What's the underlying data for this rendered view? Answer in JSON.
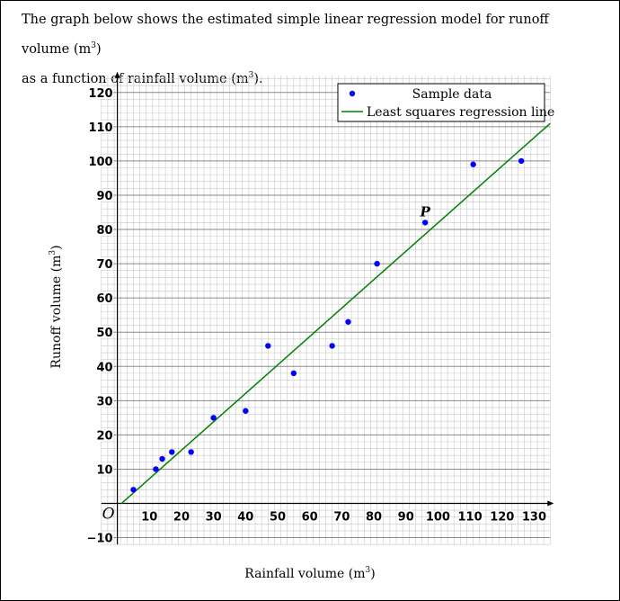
{
  "intro": {
    "line1_text": "The graph below shows the estimated simple linear regression model for runoff volume (m",
    "line1_sup": "3",
    "line1_end": ")",
    "line2_text": "as a function of rainfall volume (m",
    "line2_sup": "3",
    "line2_end": ")."
  },
  "chart_data": {
    "type": "scatter",
    "xlabel": "Rainfall volume (m",
    "xlabel_sup": "3",
    "xlabel_end": ")",
    "ylabel": "Runoff volume (m",
    "ylabel_sup": "3",
    "ylabel_end": ")",
    "xlim": [
      -5,
      135
    ],
    "ylim": [
      -12,
      125
    ],
    "x_ticks": [
      10,
      20,
      30,
      40,
      50,
      60,
      70,
      80,
      90,
      100,
      110,
      120,
      130
    ],
    "y_ticks": [
      -10,
      10,
      20,
      30,
      40,
      50,
      60,
      70,
      80,
      90,
      100,
      110,
      120
    ],
    "grid": true,
    "legend_position": "top-right",
    "origin_label": "O",
    "series": [
      {
        "name": "Sample data",
        "kind": "scatter",
        "color": "#0000ff",
        "points": [
          [
            5,
            4
          ],
          [
            12,
            10
          ],
          [
            14,
            13
          ],
          [
            17,
            15
          ],
          [
            23,
            15
          ],
          [
            30,
            25
          ],
          [
            40,
            27
          ],
          [
            47,
            46
          ],
          [
            55,
            38
          ],
          [
            67,
            46
          ],
          [
            72,
            53
          ],
          [
            81,
            70
          ],
          [
            96,
            82
          ],
          [
            111,
            99
          ],
          [
            126,
            100
          ]
        ]
      },
      {
        "name": "Least squares regression line",
        "kind": "line",
        "color": "#008000",
        "intercept": -1.08,
        "slope": 0.83
      }
    ],
    "annotations": [
      {
        "label": "P",
        "x": 96,
        "y": 82
      }
    ]
  }
}
